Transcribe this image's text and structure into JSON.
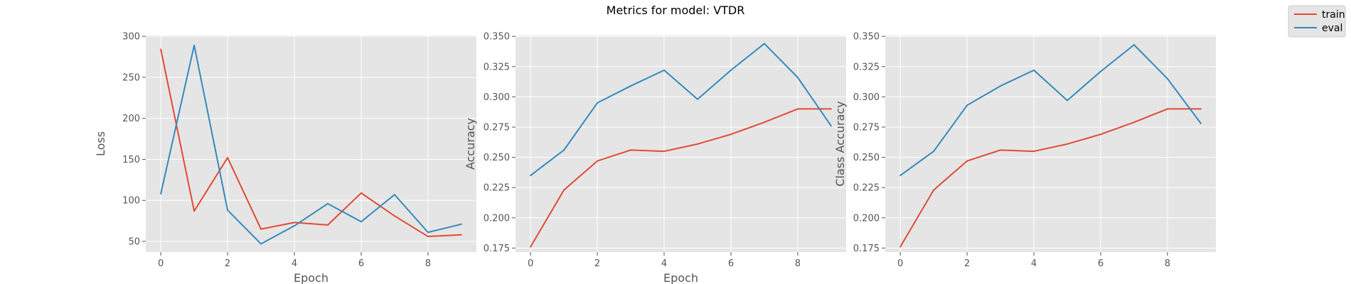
{
  "figure": {
    "title": "Metrics for model: VTDR"
  },
  "legend": {
    "placement": "top-right (figure)",
    "entries": [
      {
        "label": "train",
        "color": "#E24A33"
      },
      {
        "label": "eval",
        "color": "#348ABD"
      }
    ]
  },
  "style": {
    "axes_background": "#E5E5E5",
    "grid_color": "#FFFFFF",
    "tick_color": "#555555"
  },
  "chart_data": [
    {
      "type": "line",
      "title": "",
      "xlabel": "Epoch",
      "ylabel": "Loss",
      "grid": true,
      "xlim": [
        -0.45,
        9.45
      ],
      "ylim": [
        37,
        301
      ],
      "xticks": [
        0,
        2,
        4,
        6,
        8
      ],
      "yticks": [
        50,
        100,
        150,
        200,
        250,
        300
      ],
      "ytick_labels": [
        "50",
        "100",
        "150",
        "200",
        "250",
        "300"
      ],
      "x": [
        0,
        1,
        2,
        3,
        4,
        5,
        6,
        7,
        8,
        9
      ],
      "series": [
        {
          "name": "train",
          "color": "#E24A33",
          "values": [
            284,
            87,
            152,
            65,
            73,
            70,
            109,
            81,
            56,
            58
          ]
        },
        {
          "name": "eval",
          "color": "#348ABD",
          "values": [
            108,
            289,
            88,
            47,
            69,
            96,
            74,
            107,
            61,
            71
          ]
        }
      ]
    },
    {
      "type": "line",
      "title": "",
      "xlabel": "Epoch",
      "ylabel": "Accuracy",
      "grid": true,
      "xlim": [
        -0.45,
        9.45
      ],
      "ylim": [
        0.1717,
        0.3507
      ],
      "xticks": [
        0,
        2,
        4,
        6,
        8
      ],
      "yticks": [
        0.175,
        0.2,
        0.225,
        0.25,
        0.275,
        0.3,
        0.325,
        0.35
      ],
      "ytick_labels": [
        "0.175",
        "0.200",
        "0.225",
        "0.250",
        "0.275",
        "0.300",
        "0.325",
        "0.350"
      ],
      "x": [
        0,
        1,
        2,
        3,
        4,
        5,
        6,
        7,
        8,
        9
      ],
      "series": [
        {
          "name": "train",
          "color": "#E24A33",
          "values": [
            0.176,
            0.223,
            0.247,
            0.256,
            0.255,
            0.261,
            0.269,
            0.279,
            0.29,
            0.29
          ]
        },
        {
          "name": "eval",
          "color": "#348ABD",
          "values": [
            0.235,
            0.256,
            0.295,
            0.309,
            0.322,
            0.298,
            0.322,
            0.344,
            0.316,
            0.276
          ]
        }
      ]
    },
    {
      "type": "line",
      "title": "",
      "xlabel": "",
      "ylabel": "Class Accuracy",
      "grid": true,
      "xlim": [
        -0.45,
        9.45
      ],
      "ylim": [
        0.1717,
        0.3507
      ],
      "xticks": [
        0,
        2,
        4,
        6,
        8
      ],
      "yticks": [
        0.175,
        0.2,
        0.225,
        0.25,
        0.275,
        0.3,
        0.325,
        0.35
      ],
      "ytick_labels": [
        "0.175",
        "0.200",
        "0.225",
        "0.250",
        "0.275",
        "0.300",
        "0.325",
        "0.350"
      ],
      "x": [
        0,
        1,
        2,
        3,
        4,
        5,
        6,
        7,
        8,
        9
      ],
      "series": [
        {
          "name": "train",
          "color": "#E24A33",
          "values": [
            0.176,
            0.223,
            0.247,
            0.256,
            0.255,
            0.261,
            0.269,
            0.279,
            0.29,
            0.29
          ]
        },
        {
          "name": "eval",
          "color": "#348ABD",
          "values": [
            0.235,
            0.255,
            0.293,
            0.309,
            0.322,
            0.297,
            0.321,
            0.343,
            0.315,
            0.278
          ]
        }
      ]
    }
  ]
}
